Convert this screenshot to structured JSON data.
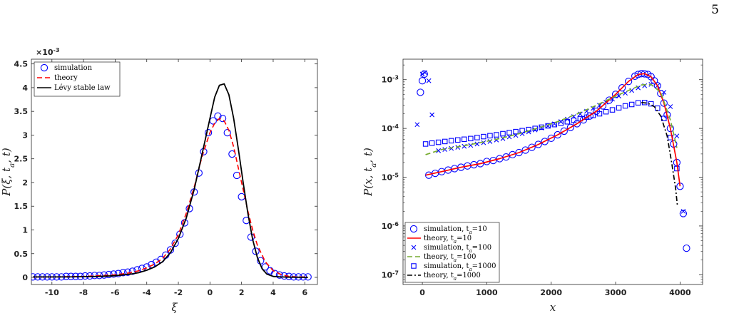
{
  "page": {
    "number": "5"
  },
  "chart_data": [
    {
      "type": "line",
      "xlabel": "ξ",
      "ylabel": "P(ξ, t_a, t)",
      "ylabel_parts": {
        "p": "P(ξ, t",
        "sub": "a",
        "rest": ", t)"
      },
      "y_multiplier_base": "×10",
      "y_multiplier_exp": "-3",
      "xlim": [
        -11.3,
        6.8
      ],
      "ylim": [
        -0.15,
        4.6
      ],
      "xticks": [
        -10,
        -8,
        -6,
        -4,
        -2,
        0,
        2,
        4,
        6
      ],
      "yticks": [
        0,
        0.5,
        1,
        1.5,
        2,
        2.5,
        3,
        3.5,
        4,
        4.5
      ],
      "legend_position": "top-left",
      "grid": false,
      "series": [
        {
          "name": "simulation",
          "style": "circles",
          "color": "#0000ff",
          "x": [
            -11.2,
            -10.9,
            -10.6,
            -10.3,
            -10,
            -9.7,
            -9.4,
            -9.1,
            -8.8,
            -8.5,
            -8.2,
            -7.9,
            -7.6,
            -7.3,
            -7,
            -6.7,
            -6.4,
            -6.1,
            -5.8,
            -5.5,
            -5.2,
            -4.9,
            -4.6,
            -4.3,
            -4,
            -3.7,
            -3.4,
            -3.1,
            -2.8,
            -2.5,
            -2.2,
            -1.9,
            -1.6,
            -1.3,
            -1,
            -0.7,
            -0.4,
            -0.1,
            0.2,
            0.5,
            0.8,
            1.1,
            1.4,
            1.7,
            2,
            2.3,
            2.6,
            2.9,
            3.2,
            3.5,
            3.8,
            4.1,
            4.4,
            4.7,
            5,
            5.3,
            5.6,
            5.9,
            6.2
          ],
          "y": [
            0.01,
            0.01,
            0.01,
            0.01,
            0.01,
            0.01,
            0.01,
            0.02,
            0.02,
            0.02,
            0.02,
            0.03,
            0.03,
            0.04,
            0.04,
            0.05,
            0.06,
            0.07,
            0.08,
            0.1,
            0.11,
            0.13,
            0.16,
            0.19,
            0.22,
            0.27,
            0.32,
            0.38,
            0.47,
            0.58,
            0.72,
            0.91,
            1.15,
            1.45,
            1.8,
            2.2,
            2.65,
            3.05,
            3.3,
            3.4,
            3.35,
            3.05,
            2.6,
            2.15,
            1.7,
            1.2,
            0.85,
            0.55,
            0.35,
            0.22,
            0.14,
            0.08,
            0.05,
            0.03,
            0.02,
            0.01,
            0.01,
            0.01,
            0.01
          ]
        },
        {
          "name": "theory",
          "style": "dashed",
          "color": "#ff0000",
          "x": [
            -11.2,
            -10,
            -9,
            -8,
            -7,
            -6,
            -5.5,
            -5,
            -4.5,
            -4,
            -3.5,
            -3,
            -2.5,
            -2,
            -1.5,
            -1,
            -0.5,
            0,
            0.3,
            0.6,
            0.9,
            1.2,
            1.5,
            1.8,
            2.1,
            2.4,
            2.7,
            3,
            3.5,
            4,
            4.5,
            5,
            5.5,
            6.2
          ],
          "y": [
            0.01,
            0.01,
            0.015,
            0.02,
            0.035,
            0.055,
            0.075,
            0.1,
            0.14,
            0.2,
            0.28,
            0.4,
            0.6,
            0.9,
            1.35,
            1.9,
            2.55,
            3.05,
            3.25,
            3.35,
            3.3,
            3.1,
            2.75,
            2.3,
            1.85,
            1.4,
            1.0,
            0.68,
            0.33,
            0.14,
            0.06,
            0.02,
            0.01,
            0.01
          ]
        },
        {
          "name": "Lévy stable law",
          "style": "solid",
          "color": "#000000",
          "x": [
            -11.2,
            -10,
            -9,
            -8,
            -7,
            -6,
            -5,
            -4.5,
            -4,
            -3.5,
            -3,
            -2.5,
            -2,
            -1.5,
            -1,
            -0.5,
            0,
            0.3,
            0.6,
            0.9,
            1.2,
            1.5,
            1.8,
            2.1,
            2.4,
            2.7,
            3,
            3.3,
            3.6,
            4,
            4.5,
            5,
            6.2
          ],
          "y": [
            0.01,
            0.01,
            0.01,
            0.015,
            0.02,
            0.035,
            0.07,
            0.1,
            0.15,
            0.22,
            0.33,
            0.52,
            0.82,
            1.25,
            1.85,
            2.6,
            3.35,
            3.8,
            4.05,
            4.08,
            3.85,
            3.35,
            2.7,
            2.0,
            1.35,
            0.8,
            0.42,
            0.18,
            0.07,
            0.02,
            0.01,
            0.005,
            0.0
          ]
        }
      ]
    },
    {
      "type": "scatter",
      "xlabel": "x",
      "ylabel": "P(x, t_a, t)",
      "ylabel_parts": {
        "p": "P(x, t",
        "sub": "a",
        "rest": ", t)"
      },
      "xlim": [
        -300,
        4350
      ],
      "ylim_log10": [
        -7.2,
        -2.58
      ],
      "yscale": "log",
      "xticks": [
        0,
        1000,
        2000,
        3000,
        4000
      ],
      "yticks_exp": [
        -7,
        -6,
        -5,
        -4,
        -3
      ],
      "ytick_base": "10",
      "legend_position": "bottom-left",
      "grid": false,
      "series": [
        {
          "name": "simulation, t_a=10",
          "label_parts": {
            "pre": "simulation, t",
            "sub": "a",
            "post": "=10"
          },
          "style": "circles",
          "color": "#0000ff",
          "x": [
            -30,
            0,
            30,
            100,
            200,
            300,
            400,
            500,
            600,
            700,
            800,
            900,
            1000,
            1100,
            1200,
            1300,
            1400,
            1500,
            1600,
            1700,
            1800,
            1900,
            2000,
            2100,
            2200,
            2300,
            2400,
            2500,
            2600,
            2700,
            2800,
            2900,
            3000,
            3100,
            3200,
            3300,
            3350,
            3400,
            3450,
            3500,
            3550,
            3600,
            3650,
            3700,
            3750,
            3800,
            3850,
            3900,
            3950,
            4000,
            4050,
            4100
          ],
          "y": [
            0.00055,
            0.00095,
            0.0013,
            1.1e-05,
            1.2e-05,
            1.3e-05,
            1.4e-05,
            1.5e-05,
            1.6e-05,
            1.7e-05,
            1.8e-05,
            1.9e-05,
            2.1e-05,
            2.2e-05,
            2.4e-05,
            2.6e-05,
            2.9e-05,
            3.2e-05,
            3.6e-05,
            4.1e-05,
            4.7e-05,
            5.4e-05,
            6.3e-05,
            7.4e-05,
            8.8e-05,
            0.000105,
            0.000125,
            0.00015,
            0.00018,
            0.000225,
            0.00029,
            0.00038,
            0.0005,
            0.00068,
            0.00092,
            0.00118,
            0.00128,
            0.00133,
            0.00132,
            0.00128,
            0.00115,
            0.00095,
            0.00075,
            0.00052,
            0.00033,
            0.00019,
            0.0001,
            4.8e-05,
            2e-05,
            6.5e-06,
            1.8e-06,
            3.5e-07
          ]
        },
        {
          "name": "theory, t_a=10",
          "label_parts": {
            "pre": "theory, t",
            "sub": "a",
            "post": "=10"
          },
          "style": "solid",
          "color": "#ff0000",
          "x": [
            50,
            300,
            600,
            900,
            1200,
            1500,
            1800,
            2100,
            2400,
            2700,
            3000,
            3200,
            3350,
            3450,
            3550,
            3650,
            3750,
            3850,
            3950,
            4000
          ],
          "y": [
            1.1e-05,
            1.3e-05,
            1.6e-05,
            1.9e-05,
            2.4e-05,
            3.2e-05,
            4.7e-05,
            7.4e-05,
            0.000125,
            0.000225,
            0.0005,
            0.00092,
            0.00128,
            0.00133,
            0.00115,
            0.00075,
            0.00033,
            0.0001,
            2e-05,
            6.5e-06
          ]
        },
        {
          "name": "simulation, t_a=100",
          "label_parts": {
            "pre": "simulation, t",
            "sub": "a",
            "post": "=100"
          },
          "style": "crosses",
          "color": "#0000ff",
          "x": [
            -80,
            0,
            40,
            100,
            150,
            250,
            350,
            450,
            550,
            650,
            750,
            850,
            950,
            1050,
            1150,
            1250,
            1350,
            1450,
            1550,
            1650,
            1750,
            1850,
            1950,
            2050,
            2150,
            2250,
            2350,
            2450,
            2550,
            2650,
            2750,
            2850,
            2950,
            3050,
            3150,
            3250,
            3350,
            3450,
            3550,
            3650,
            3750,
            3850,
            3950,
            4050
          ],
          "y": [
            0.00012,
            0.0013,
            0.0014,
            0.00095,
            0.00019,
            3.5e-05,
            3.7e-05,
            3.9e-05,
            4.1e-05,
            4.3e-05,
            4.5e-05,
            4.8e-05,
            5.1e-05,
            5.4e-05,
            5.8e-05,
            6.2e-05,
            6.7e-05,
            7.2e-05,
            7.8e-05,
            8.5e-05,
            9.3e-05,
            0.000102,
            0.000112,
            0.000124,
            0.000138,
            0.000155,
            0.000175,
            0.000198,
            0.000225,
            0.000258,
            0.000298,
            0.000345,
            0.0004,
            0.00046,
            0.00053,
            0.0006,
            0.00068,
            0.00075,
            0.0008,
            0.00075,
            0.00055,
            0.00028,
            7e-05,
            2e-06
          ]
        },
        {
          "name": "theory, t_a=100",
          "label_parts": {
            "pre": "theory, t",
            "sub": "a",
            "post": "=100"
          },
          "style": "dashed",
          "color": "#77ac30",
          "x": [
            50,
            300,
            600,
            900,
            1200,
            1500,
            1800,
            2100,
            2400,
            2700,
            3000,
            3200,
            3400,
            3550,
            3700,
            3850,
            3950
          ],
          "y": [
            2.9e-05,
            3.7e-05,
            4.3e-05,
            5.1e-05,
            6.2e-05,
            7.8e-05,
            0.000102,
            0.000138,
            0.000198,
            0.000298,
            0.00046,
            0.0006,
            0.00078,
            0.0008,
            0.00055,
            0.00015,
            4e-05
          ]
        },
        {
          "name": "simulation, t_a=1000",
          "label_parts": {
            "pre": "simulation, t",
            "sub": "a",
            "post": "=1000"
          },
          "style": "squares",
          "color": "#0000ff",
          "x": [
            50,
            150,
            250,
            350,
            450,
            550,
            650,
            750,
            850,
            950,
            1050,
            1150,
            1250,
            1350,
            1450,
            1550,
            1650,
            1750,
            1850,
            1950,
            2050,
            2150,
            2250,
            2350,
            2450,
            2550,
            2650,
            2750,
            2850,
            2950,
            3050,
            3150,
            3250,
            3350,
            3450,
            3550,
            3650,
            3750,
            3850,
            3950
          ],
          "y": [
            4.8e-05,
            5e-05,
            5.2e-05,
            5.4e-05,
            5.6e-05,
            5.8e-05,
            6e-05,
            6.2e-05,
            6.5e-05,
            6.8e-05,
            7.1e-05,
            7.4e-05,
            7.8e-05,
            8.2e-05,
            8.6e-05,
            9e-05,
            9.5e-05,
            0.0001,
            0.000106,
            0.000113,
            0.00012,
            0.000128,
            0.000137,
            0.000147,
            0.000158,
            0.00017,
            0.000185,
            0.0002,
            0.00022,
            0.00024,
            0.000265,
            0.00029,
            0.00031,
            0.000335,
            0.00034,
            0.00032,
            0.00026,
            0.00016,
            6.5e-05,
            1.5e-05
          ]
        },
        {
          "name": "theory, t_a=1000",
          "label_parts": {
            "pre": "theory, t",
            "sub": "a",
            "post": "=1000"
          },
          "style": "dashdot",
          "color": "#000000",
          "x": [
            3400,
            3500,
            3600,
            3700,
            3800,
            3870,
            3930,
            3960
          ],
          "y": [
            0.00034,
            0.00033,
            0.00028,
            0.00018,
            7e-05,
            2e-05,
            6e-06,
            2.5e-06
          ]
        }
      ]
    }
  ]
}
